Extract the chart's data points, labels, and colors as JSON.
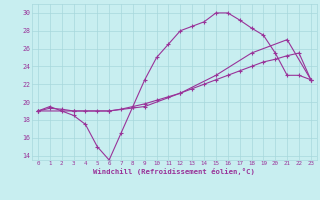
{
  "xlabel": "Windchill (Refroidissement éolien,°C)",
  "bg_color": "#c8eef0",
  "grid_color": "#a8d8dc",
  "line_color": "#993399",
  "ylim": [
    13.5,
    31.0
  ],
  "xlim": [
    -0.5,
    23.5
  ],
  "yticks": [
    14,
    16,
    18,
    20,
    22,
    24,
    26,
    28,
    30
  ],
  "xticks": [
    0,
    1,
    2,
    3,
    4,
    5,
    6,
    7,
    8,
    9,
    10,
    11,
    12,
    13,
    14,
    15,
    16,
    17,
    18,
    19,
    20,
    21,
    22,
    23
  ],
  "line1_x": [
    0,
    1,
    2,
    3,
    4,
    5,
    6,
    7,
    8,
    9,
    10,
    11,
    12,
    13,
    14,
    15,
    16,
    17,
    18,
    19,
    20,
    21,
    22,
    23
  ],
  "line1_y": [
    19.0,
    19.5,
    19.0,
    18.5,
    17.5,
    15.0,
    13.5,
    16.5,
    19.5,
    22.5,
    25.0,
    26.5,
    28.0,
    28.5,
    29.0,
    30.0,
    30.0,
    29.2,
    28.3,
    27.5,
    25.5,
    23.0,
    23.0,
    22.5
  ],
  "line2_x": [
    0,
    1,
    2,
    3,
    4,
    5,
    6,
    7,
    8,
    9,
    10,
    11,
    12,
    13,
    14,
    15,
    16,
    17,
    18,
    19,
    20,
    21,
    22,
    23
  ],
  "line2_y": [
    19.0,
    19.3,
    19.2,
    19.0,
    19.0,
    19.0,
    19.0,
    19.2,
    19.5,
    19.8,
    20.2,
    20.6,
    21.0,
    21.5,
    22.0,
    22.5,
    23.0,
    23.5,
    24.0,
    24.5,
    24.8,
    25.2,
    25.5,
    22.5
  ],
  "line3_x": [
    0,
    3,
    6,
    9,
    12,
    15,
    18,
    21,
    23
  ],
  "line3_y": [
    19.0,
    19.0,
    19.0,
    19.5,
    21.0,
    23.0,
    25.5,
    27.0,
    22.5
  ]
}
